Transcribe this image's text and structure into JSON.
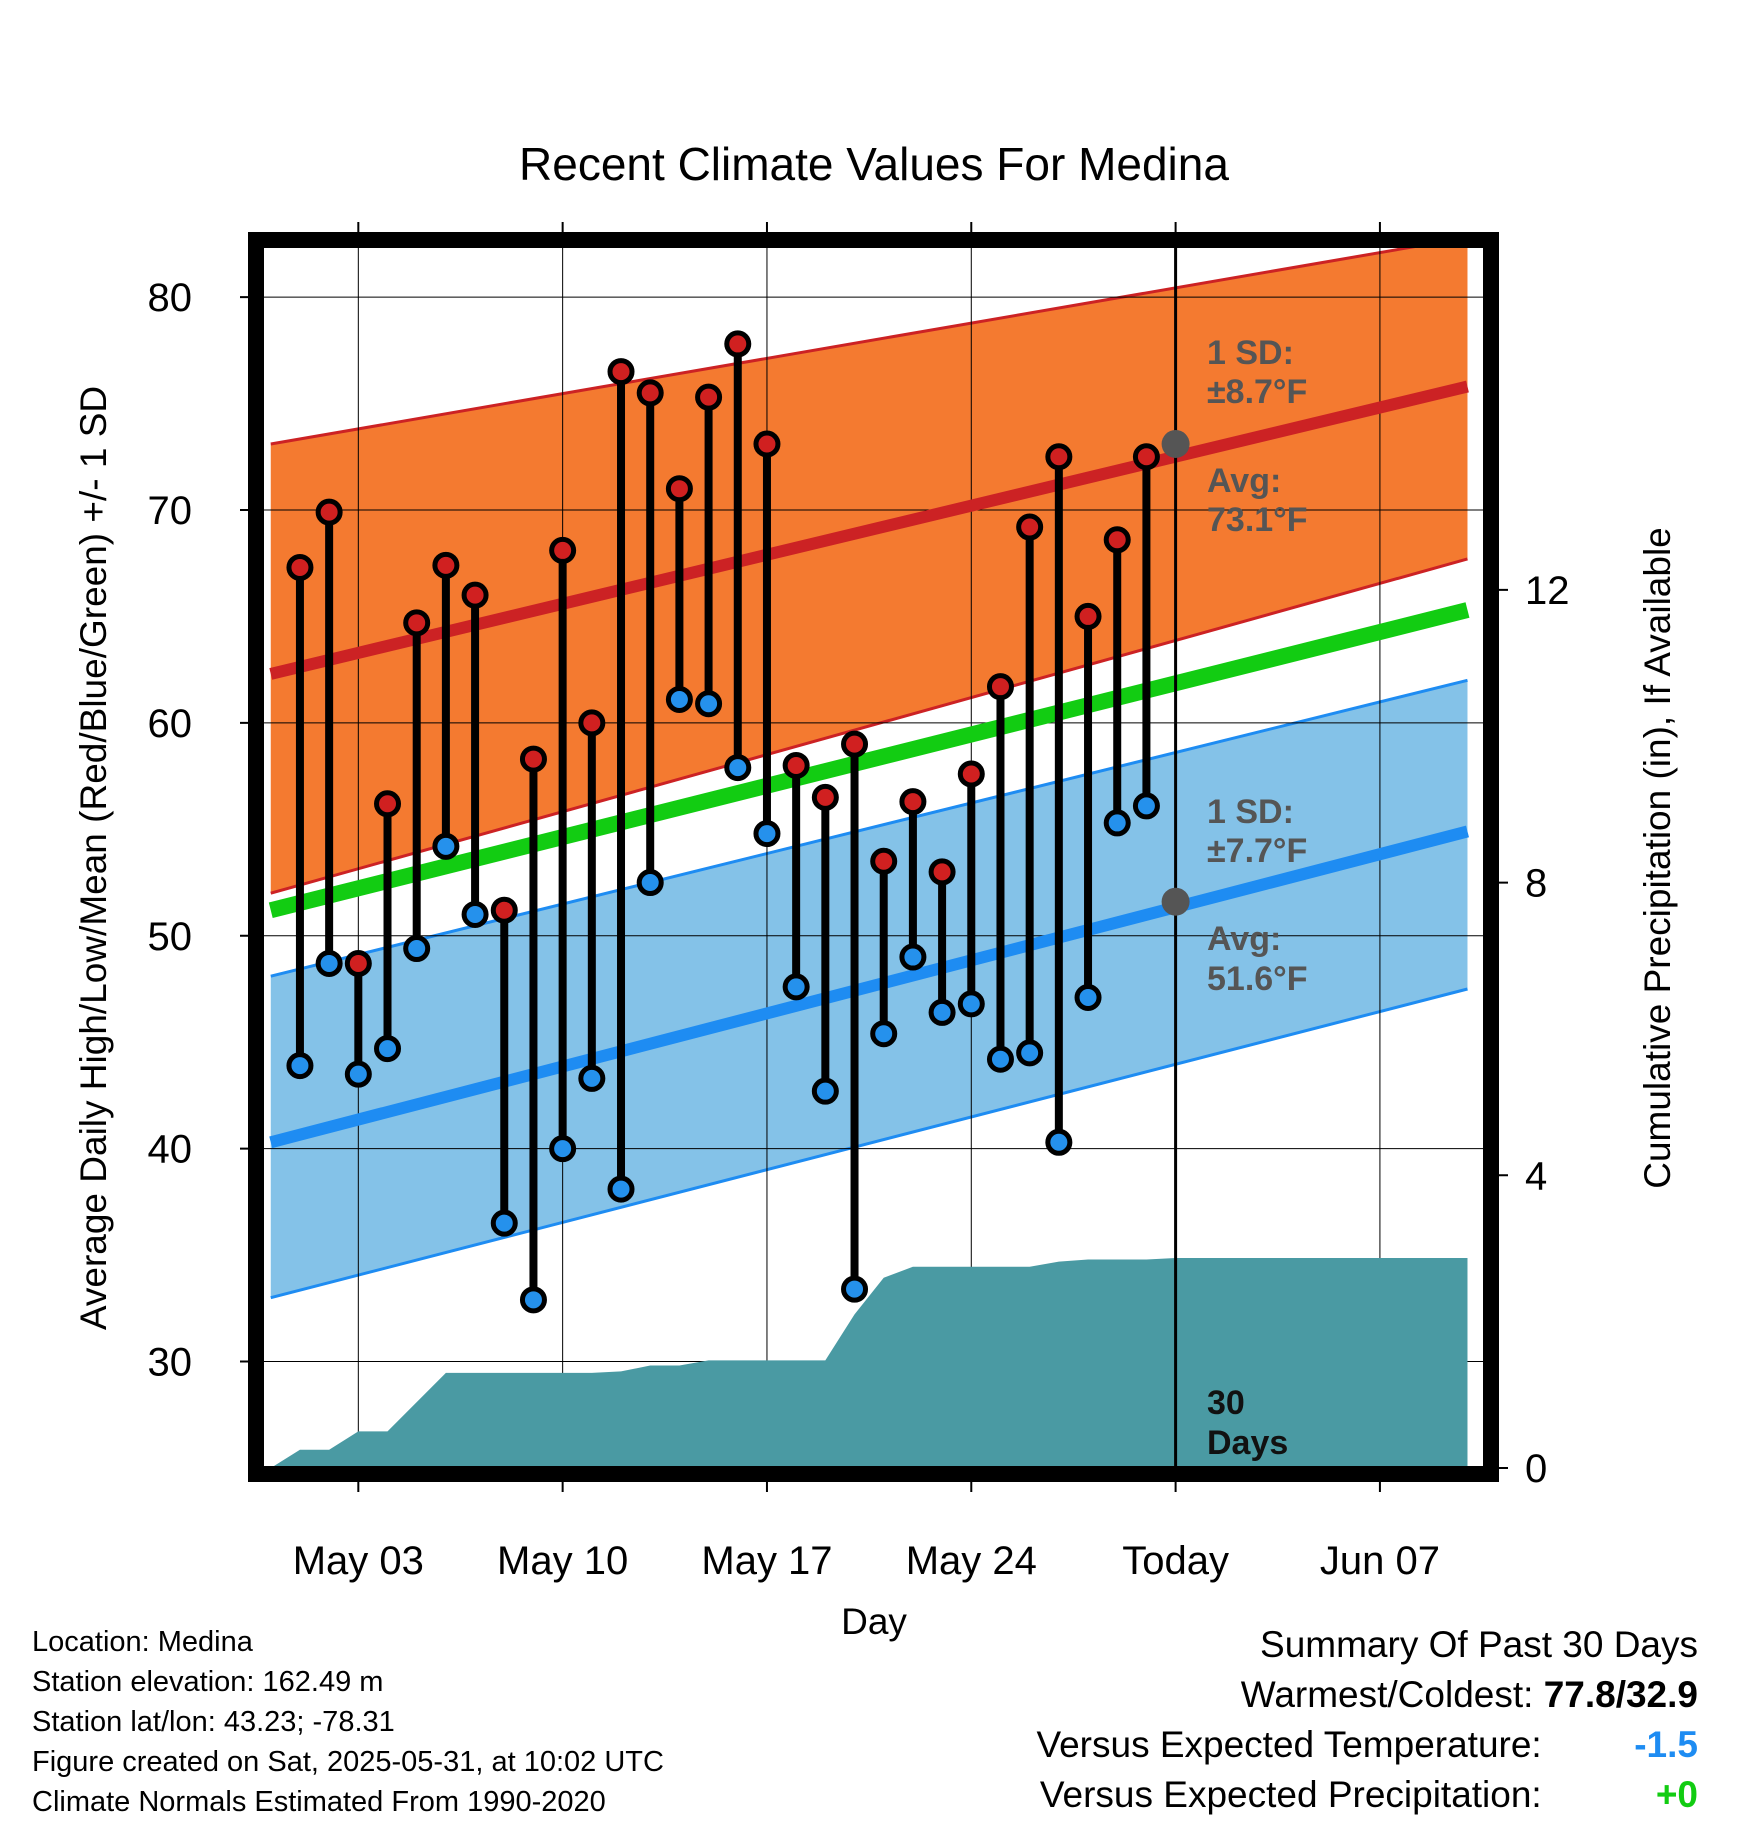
{
  "chart_data": {
    "type": "line",
    "title": "Recent Climate Values For Medina",
    "xlabel": "Day",
    "ylabel": "Average Daily High/Low/Mean (Red/Blue/Green) +/- 1 SD",
    "y2label": "Cumulative Precipitation (in), If Available",
    "x_ticks": [
      "May 03",
      "May 10",
      "May 17",
      "May 24",
      "Today",
      "Jun 07"
    ],
    "x_tick_days": [
      3,
      10,
      17,
      24,
      31,
      38
    ],
    "xlim": [
      -0.3,
      41.6
    ],
    "ylim": [
      25,
      82.4
    ],
    "y_ticks": [
      30,
      40,
      50,
      60,
      70,
      80
    ],
    "y2lim": [
      0,
      16.7
    ],
    "y2_ticks": [
      0,
      4,
      8,
      12
    ],
    "today_day": 31,
    "days": [
      1,
      2,
      3,
      4,
      5,
      6,
      7,
      8,
      9,
      10,
      11,
      12,
      13,
      14,
      15,
      16,
      17,
      18,
      19,
      20,
      21,
      22,
      23,
      24,
      25,
      26,
      27,
      28,
      29,
      30
    ],
    "highs": [
      67.3,
      69.9,
      48.7,
      56.2,
      64.7,
      67.4,
      66.0,
      51.2,
      58.3,
      68.1,
      60.0,
      76.5,
      75.5,
      71.0,
      75.3,
      77.8,
      73.1,
      58.0,
      56.5,
      59.0,
      53.5,
      56.3,
      53.0,
      57.6,
      61.7,
      69.2,
      72.5,
      65.0,
      68.6,
      72.5
    ],
    "lows": [
      43.9,
      48.7,
      43.5,
      44.7,
      49.4,
      54.2,
      51.0,
      36.5,
      32.9,
      40.0,
      43.3,
      38.1,
      52.5,
      61.1,
      60.9,
      57.9,
      54.8,
      47.6,
      42.7,
      33.4,
      45.4,
      49.0,
      46.4,
      46.8,
      44.2,
      44.5,
      40.3,
      47.1,
      55.3,
      56.1
    ],
    "normal_days": [
      0,
      41
    ],
    "normal_high": [
      62.3,
      75.8
    ],
    "normal_high_plus_sd": [
      73.1,
      82.8
    ],
    "normal_high_minus_sd": [
      52.0,
      67.7
    ],
    "normal_low": [
      40.3,
      54.9
    ],
    "normal_low_plus_sd": [
      48.1,
      62.0
    ],
    "normal_low_minus_sd": [
      33.0,
      47.5
    ],
    "normal_mean": [
      51.2,
      65.3
    ],
    "precip_days": [
      0,
      1,
      2,
      3,
      4,
      5,
      6,
      7,
      8,
      9,
      10,
      11,
      12,
      13,
      14,
      15,
      16,
      17,
      18,
      19,
      20,
      21,
      22,
      23,
      24,
      25,
      26,
      27,
      28,
      29,
      30,
      31,
      41
    ],
    "precip_cum": [
      0.0,
      0.25,
      0.25,
      0.5,
      0.5,
      0.9,
      1.3,
      1.3,
      1.3,
      1.3,
      1.3,
      1.3,
      1.32,
      1.4,
      1.4,
      1.47,
      1.47,
      1.47,
      1.47,
      1.47,
      2.1,
      2.6,
      2.75,
      2.75,
      2.75,
      2.75,
      2.75,
      2.82,
      2.85,
      2.85,
      2.85,
      2.87,
      2.87
    ],
    "colors": {
      "high_band": "#f47a30",
      "high_line": "#cc2224",
      "low_band": "#84c2e8",
      "low_line": "#1e8cf2",
      "mean_line": "#12cc12",
      "precip": "#4a9aa3",
      "high_marker": "#d02020",
      "low_marker": "#2591ec",
      "today_marker": "#555555"
    },
    "annotations": {
      "high_sd_line1": "1 SD:",
      "high_sd_line2": "±8.7°F",
      "high_avg_line1": "Avg:",
      "high_avg_line2": "73.1°F",
      "high_avg_value": 73.1,
      "low_sd_line1": "1 SD:",
      "low_sd_line2": "±7.7°F",
      "low_avg_line1": "Avg:",
      "low_avg_line2": "51.6°F",
      "low_avg_value": 51.6,
      "days_line1": "30",
      "days_line2": "Days"
    }
  },
  "info": {
    "location": "Location: Medina",
    "elevation": "Station elevation: 162.49 m",
    "latlon": "Station lat/lon: 43.23; -78.31",
    "created": "Figure created on Sat, 2025-05-31, at 10:02 UTC",
    "normals": "Climate Normals Estimated From 1990-2020"
  },
  "summary": {
    "heading": "Summary Of Past 30 Days",
    "warmest_label": "Warmest/Coldest:",
    "warmest_value": "77.8/32.9",
    "temp_label": "Versus Expected Temperature:",
    "temp_value": "-1.5",
    "temp_color": "#1e8cf2",
    "precip_label": "Versus Expected Precipitation:",
    "precip_value": "+0",
    "precip_color": "#12cc12"
  }
}
